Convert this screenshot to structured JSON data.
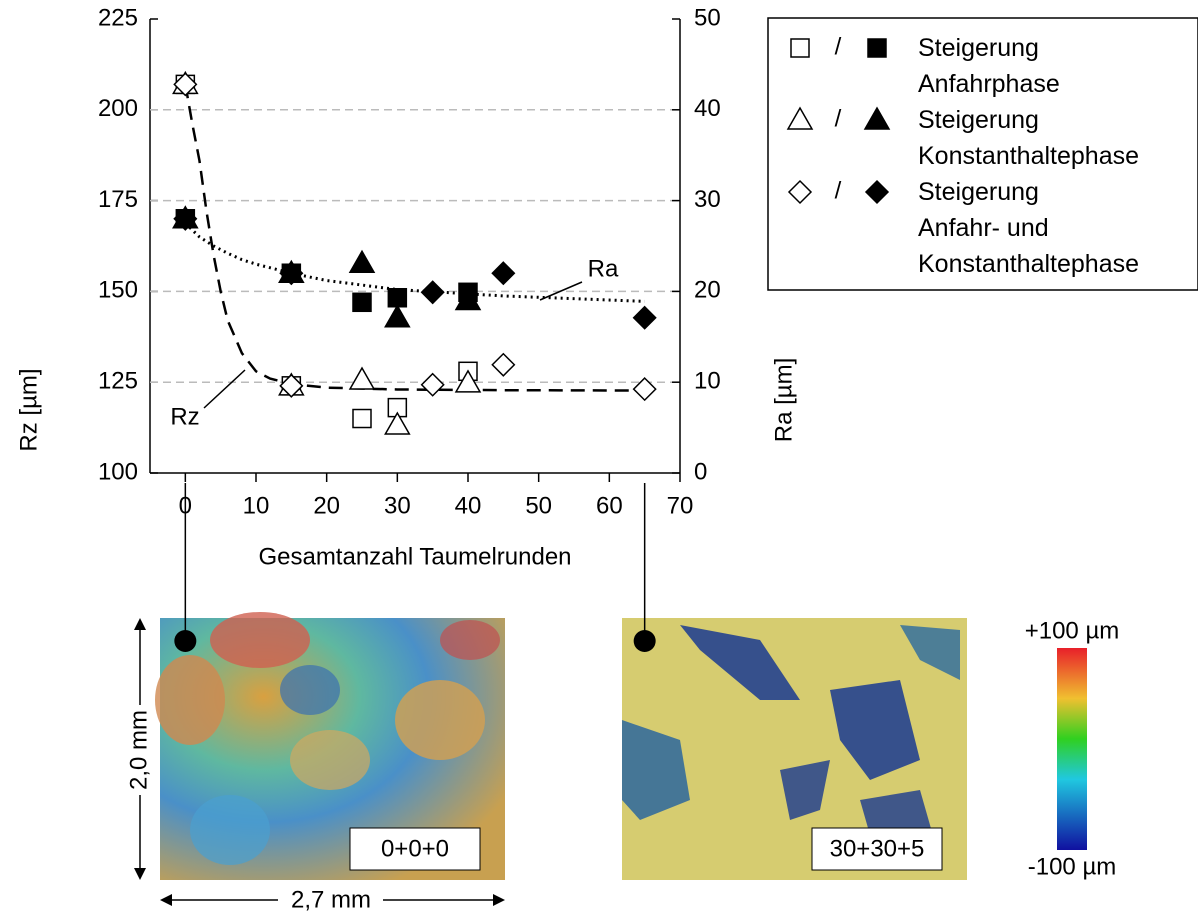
{
  "chart_data": {
    "type": "scatter",
    "x_label": "Gesamtanzahl Taumelrunden",
    "y_label": "Rz [µm]",
    "y2_label": "Ra [µm]",
    "xlim": [
      -5,
      70
    ],
    "xticks": [
      0,
      10,
      20,
      30,
      40,
      50,
      60,
      70
    ],
    "ylim": [
      100,
      225
    ],
    "yticks": [
      100,
      125,
      150,
      175,
      200,
      225
    ],
    "y2lim": [
      0,
      50
    ],
    "y2ticks": [
      0,
      10,
      20,
      30,
      40,
      50
    ],
    "grid": true,
    "series": [
      {
        "name": "Steigerung\nAnfahrphase",
        "marker": "square",
        "color": "#000000",
        "x": [
          0,
          15,
          25,
          30,
          40
        ],
        "values": [
          207,
          124,
          115,
          118,
          128
        ],
        "ra_values": [
          28,
          22,
          18.8,
          19.3,
          19.9
        ]
      },
      {
        "name": "Steigerung\nKonstanthaltephase",
        "marker": "triangle",
        "color": "#000000",
        "x": [
          0,
          15,
          25,
          30,
          40
        ],
        "values": [
          207,
          124,
          125.6,
          113.2,
          124.8
        ],
        "ra_values": [
          28,
          22,
          23.1,
          17.1,
          19
        ]
      },
      {
        "name": "Steigerung\nAnfahr- und\nKonstanthaltephase",
        "marker": "diamond",
        "color": "#000000",
        "x": [
          0,
          15,
          35,
          45,
          65
        ],
        "values": [
          207,
          124,
          124.3,
          129.8,
          123.1
        ],
        "ra_values": [
          28,
          22,
          19.9,
          22,
          17.1
        ]
      }
    ],
    "fits": [
      {
        "label": "Rz",
        "axis": "y",
        "x": [
          0,
          1,
          2,
          3,
          4,
          5,
          6,
          8,
          10,
          12,
          15,
          20,
          30,
          45,
          65
        ],
        "values": [
          207,
          196,
          186,
          172,
          160,
          150,
          142,
          133,
          128,
          126,
          124.5,
          123.5,
          123,
          122.8,
          122.7
        ]
      },
      {
        "label": "Ra",
        "axis": "y2",
        "x": [
          0,
          2,
          4,
          6,
          8,
          10,
          15,
          20,
          30,
          45,
          65
        ],
        "values": [
          27.5,
          26,
          25,
          24.2,
          23.5,
          23,
          22,
          21.2,
          20.2,
          19.5,
          18.9
        ]
      }
    ],
    "legend_separator": "/",
    "images": [
      {
        "label": "0+0+0",
        "x": 0
      },
      {
        "label": "30+30+5",
        "x": 65
      }
    ],
    "image_height": "2,0 mm",
    "image_width": "2,7 mm",
    "colorbar": {
      "max_label": "+100 µm",
      "min_label": "-100 µm"
    }
  }
}
